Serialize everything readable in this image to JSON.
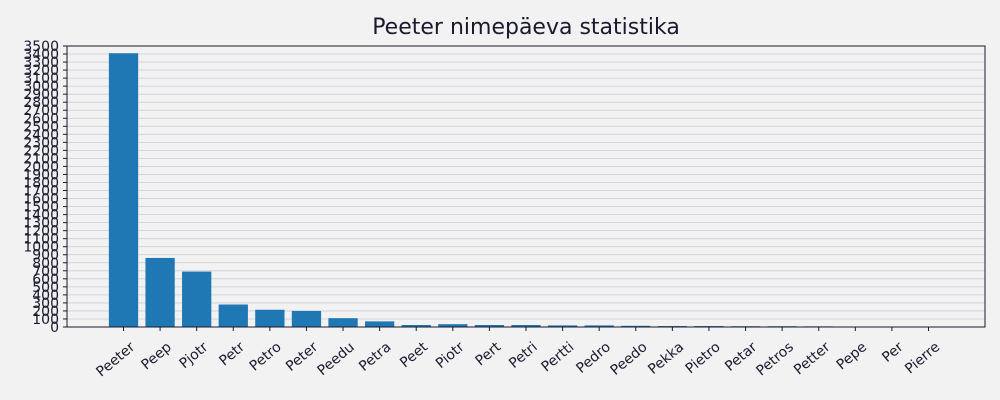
{
  "chart_data": {
    "type": "bar",
    "title": "Peeter nimepäeva statistika",
    "xlabel": "",
    "ylabel": "",
    "ylim": [
      0,
      3500
    ],
    "ytick_step": 100,
    "grid": true,
    "bar_color": "#1f77b4",
    "background": "#f2f2f2",
    "categories": [
      "Peeter",
      "Peep",
      "Pjotr",
      "Petr",
      "Petro",
      "Peter",
      "Peedu",
      "Petra",
      "Peet",
      "Piotr",
      "Pert",
      "Petri",
      "Pertti",
      "Pedro",
      "Peedo",
      "Pekka",
      "Pietro",
      "Petar",
      "Petros",
      "Petter",
      "Pepe",
      "Per",
      "Pierre"
    ],
    "values": [
      3410,
      860,
      690,
      280,
      215,
      200,
      110,
      70,
      25,
      35,
      25,
      25,
      20,
      20,
      15,
      12,
      12,
      10,
      10,
      8,
      5,
      5,
      3
    ]
  }
}
